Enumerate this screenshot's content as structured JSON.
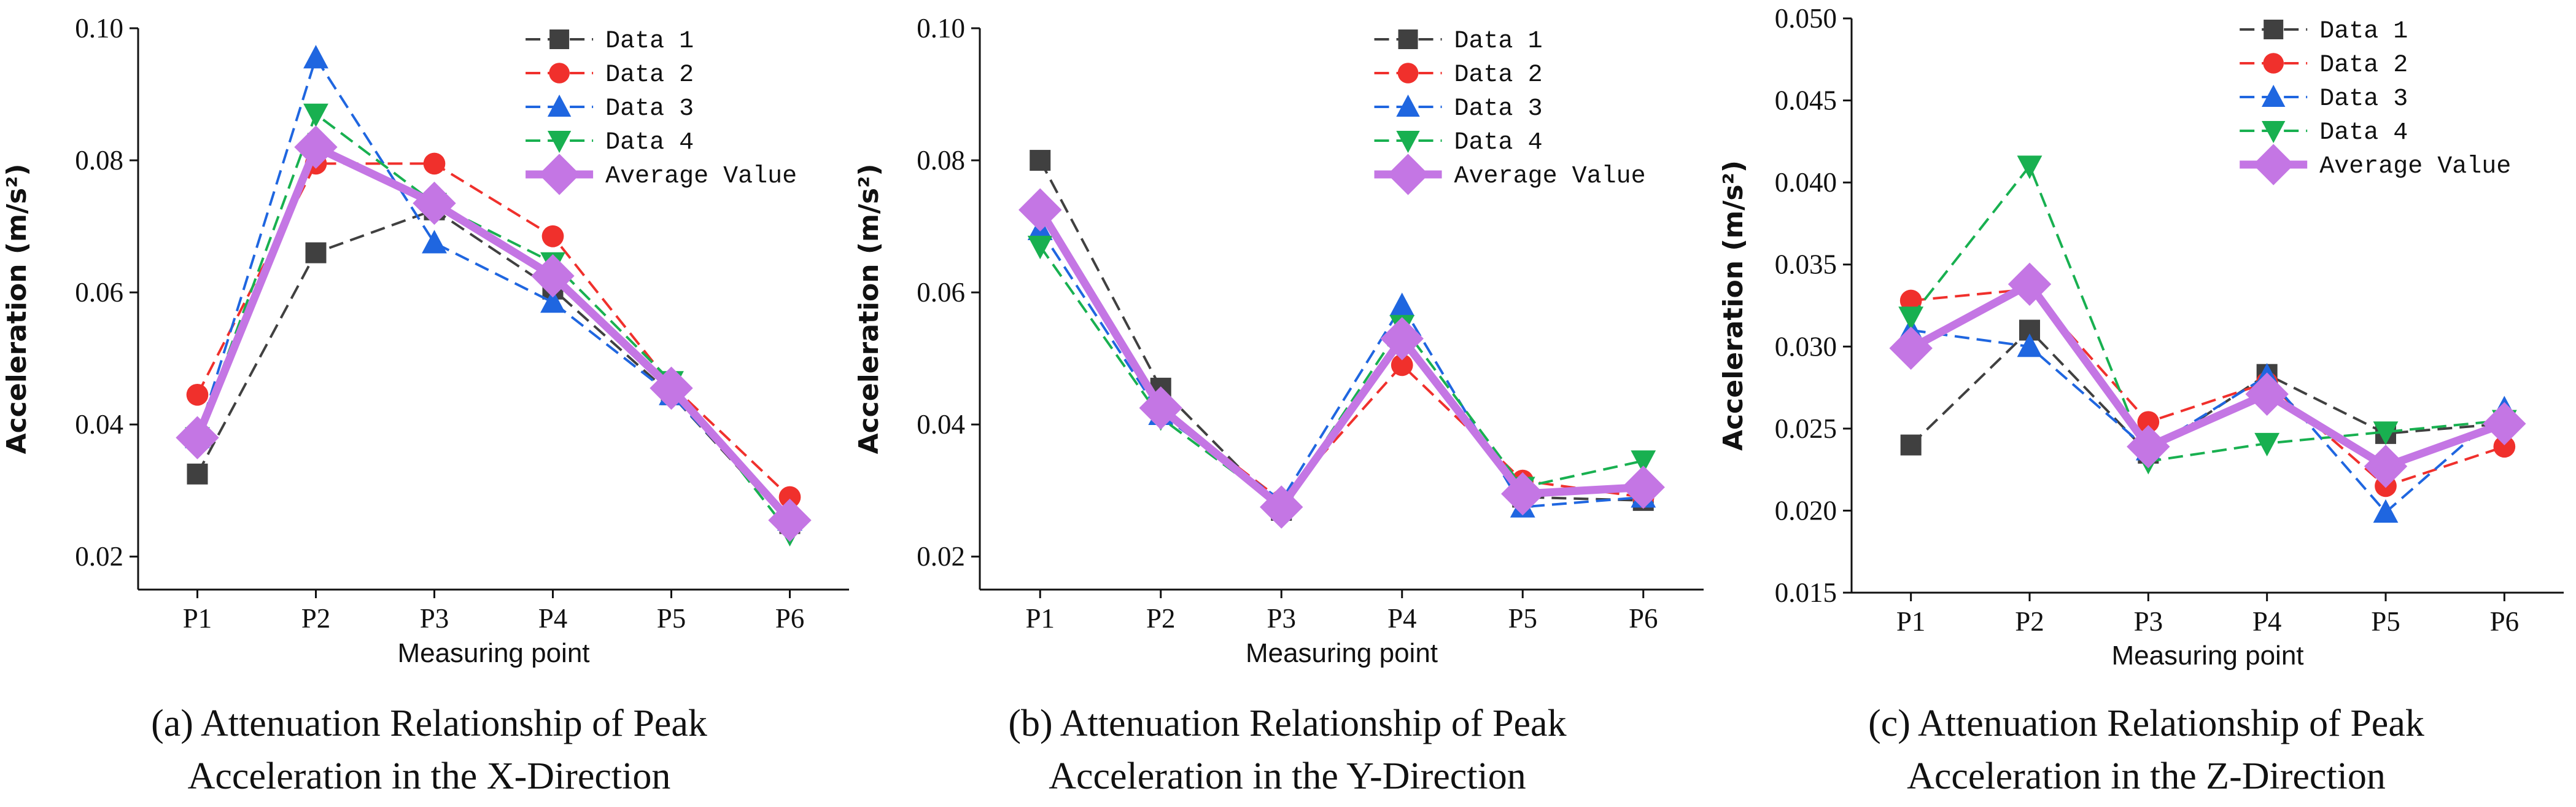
{
  "chart_data": [
    {
      "type": "line",
      "caption": [
        "(a) Attenuation Relationship of Peak",
        "Acceleration in the X-Direction"
      ],
      "xlabel": "Measuring point",
      "ylabel": "Acceleration (m/s²)",
      "categories": [
        "P1",
        "P2",
        "P3",
        "P4",
        "P5",
        "P6"
      ],
      "ylim": [
        0.015,
        0.1
      ],
      "yticks": [
        0.02,
        0.04,
        0.06,
        0.08,
        0.1
      ],
      "ytick_labels": [
        "0.02",
        "0.04",
        "0.06",
        "0.08",
        "0.10"
      ],
      "legend_position": "top-right",
      "series": [
        {
          "name": "Data 1",
          "values": [
            0.0325,
            0.066,
            0.0725,
            0.0605,
            0.0445,
            0.025
          ]
        },
        {
          "name": "Data 2",
          "values": [
            0.0445,
            0.0795,
            0.0795,
            0.0685,
            0.046,
            0.029
          ]
        },
        {
          "name": "Data 3",
          "values": [
            0.038,
            0.0955,
            0.0675,
            0.0585,
            0.0445,
            0.0255
          ]
        },
        {
          "name": "Data 4",
          "values": [
            0.038,
            0.087,
            0.0735,
            0.0645,
            0.0465,
            0.0235
          ]
        },
        {
          "name": "Average Value",
          "values": [
            0.038,
            0.082,
            0.0735,
            0.0625,
            0.0455,
            0.0255
          ]
        }
      ]
    },
    {
      "type": "line",
      "caption": [
        "(b) Attenuation Relationship of Peak",
        "Acceleration in the Y-Direction"
      ],
      "xlabel": "Measuring point",
      "ylabel": "Acceleration (m/s²)",
      "categories": [
        "P1",
        "P2",
        "P3",
        "P4",
        "P5",
        "P6"
      ],
      "ylim": [
        0.015,
        0.1
      ],
      "yticks": [
        0.02,
        0.04,
        0.06,
        0.08,
        0.1
      ],
      "ytick_labels": [
        "0.02",
        "0.04",
        "0.06",
        "0.08",
        "0.10"
      ],
      "legend_position": "top-right",
      "series": [
        {
          "name": "Data 1",
          "values": [
            0.08,
            0.0455,
            0.027,
            0.0525,
            0.029,
            0.0285
          ]
        },
        {
          "name": "Data 2",
          "values": [
            0.073,
            0.0425,
            0.0285,
            0.049,
            0.0315,
            0.029
          ]
        },
        {
          "name": "Data 3",
          "values": [
            0.0695,
            0.0415,
            0.0285,
            0.058,
            0.0275,
            0.029
          ]
        },
        {
          "name": "Data 4",
          "values": [
            0.067,
            0.041,
            0.0275,
            0.055,
            0.0305,
            0.0345
          ]
        },
        {
          "name": "Average Value",
          "values": [
            0.0725,
            0.0425,
            0.0275,
            0.053,
            0.0295,
            0.0305
          ]
        }
      ]
    },
    {
      "type": "line",
      "caption": [
        "(c) Attenuation Relationship of Peak",
        "Acceleration in the Z-Direction"
      ],
      "xlabel": "Measuring point",
      "ylabel": "Acceleration (m/s²)",
      "categories": [
        "P1",
        "P2",
        "P3",
        "P4",
        "P5",
        "P6"
      ],
      "ylim": [
        0.015,
        0.05
      ],
      "yticks": [
        0.015,
        0.02,
        0.025,
        0.03,
        0.035,
        0.04,
        0.045,
        0.05
      ],
      "ytick_labels": [
        "0.015",
        "0.020",
        "0.025",
        "0.030",
        "0.035",
        "0.040",
        "0.045",
        "0.050"
      ],
      "legend_position": "top-right",
      "series": [
        {
          "name": "Data 1",
          "values": [
            0.024,
            0.031,
            0.0235,
            0.0283,
            0.0247,
            0.0253
          ]
        },
        {
          "name": "Data 2",
          "values": [
            0.0328,
            0.0335,
            0.0254,
            0.0278,
            0.0215,
            0.0239
          ]
        },
        {
          "name": "Data 3",
          "values": [
            0.031,
            0.03,
            0.0237,
            0.0282,
            0.0199,
            0.0262
          ]
        },
        {
          "name": "Data 4",
          "values": [
            0.0318,
            0.041,
            0.023,
            0.0241,
            0.0248,
            0.0255
          ]
        },
        {
          "name": "Average Value",
          "values": [
            0.0299,
            0.0338,
            0.0239,
            0.0271,
            0.0227,
            0.0253
          ]
        }
      ]
    }
  ],
  "styles": {
    "Data 1": {
      "color": "#404040",
      "marker": "square"
    },
    "Data 2": {
      "color": "#f0302c",
      "marker": "circle"
    },
    "Data 3": {
      "color": "#1f66e0",
      "marker": "triangle-up"
    },
    "Data 4": {
      "color": "#18b050",
      "marker": "triangle-down"
    },
    "Average Value": {
      "color": "#c476e4",
      "marker": "diamond"
    }
  }
}
